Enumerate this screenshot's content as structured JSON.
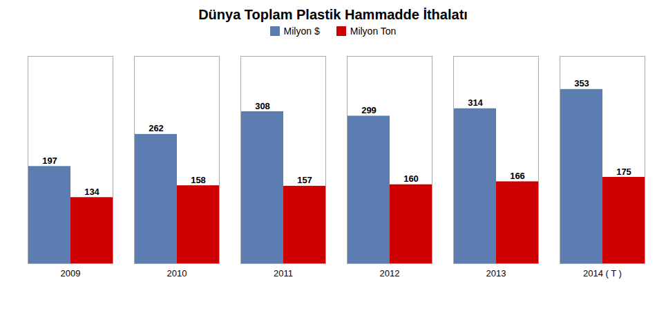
{
  "chart_data": {
    "type": "bar",
    "title": "Dünya Toplam Plastik Hammadde İthalatı",
    "categories": [
      "2009",
      "2010",
      "2011",
      "2012",
      "2013",
      "2014 ( T )"
    ],
    "series": [
      {
        "name": "Milyon $",
        "color": "#5b7db1",
        "values": [
          197,
          262,
          308,
          299,
          314,
          353
        ]
      },
      {
        "name": "Milyon Ton",
        "color": "#cc0000",
        "values": [
          134,
          158,
          157,
          160,
          166,
          175
        ]
      }
    ],
    "ylim": [
      0,
      420
    ],
    "data_labels": true,
    "tick_labels": "x",
    "grid": false,
    "legend": "top"
  }
}
